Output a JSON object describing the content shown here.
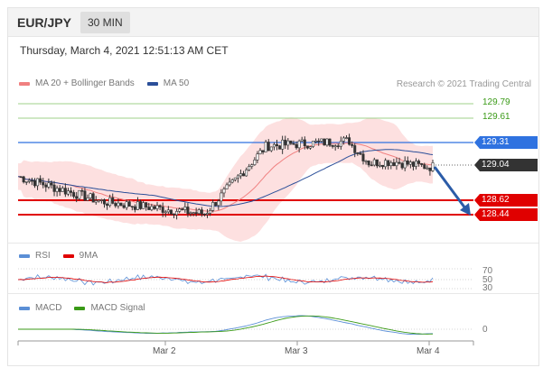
{
  "header": {
    "pair": "EUR/JPY",
    "timeframe": "30 MIN"
  },
  "datetime": "Thursday, March 4, 2021 12:51:13 AM CET",
  "legend": {
    "main": [
      {
        "label": "MA 20 + Bollinger Bands",
        "color": "#f08080"
      },
      {
        "label": "MA 50",
        "color": "#2b4f99"
      }
    ],
    "credit": "Research © 2021 Trading Central",
    "rsi": [
      {
        "label": "RSI",
        "color": "#5b8fd6"
      },
      {
        "label": "9MA",
        "color": "#e00000"
      }
    ],
    "macd": [
      {
        "label": "MACD",
        "color": "#5b8fd6"
      },
      {
        "label": "MACD Signal",
        "color": "#3a9a17"
      }
    ]
  },
  "levels": {
    "resistance_green": [
      "129.79",
      "129.61"
    ],
    "resistance_blue": "129.31",
    "current": "129.04",
    "support": [
      "128.62",
      "128.44"
    ]
  },
  "rsi_axis": [
    "70",
    "50",
    "30"
  ],
  "macd_axis": "0",
  "x_axis": [
    "Mar 2",
    "Mar 3",
    "Mar 4"
  ],
  "colors": {
    "resistance_blue": "#2f72e0",
    "support": "#e00000",
    "current": "#333333",
    "green": "#3a9a17",
    "arrow": "#2b5ca8"
  }
}
